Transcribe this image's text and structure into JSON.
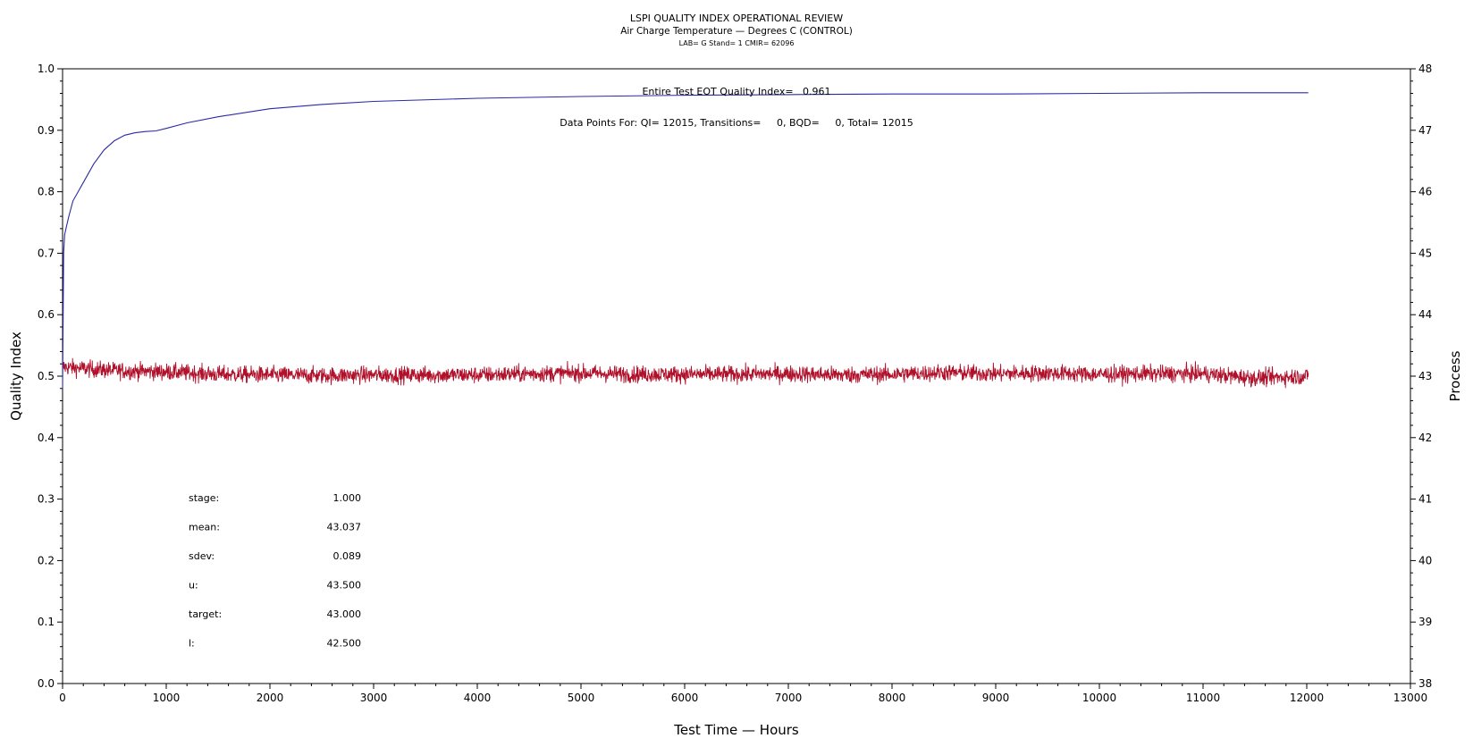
{
  "header": {
    "title": "LSPI QUALITY INDEX OPERATIONAL REVIEW",
    "subtitle": "Air Charge Temperature — Degrees C (CONTROL)",
    "subsubtitle": "LAB= G Stand= 1 CMIR= 62096"
  },
  "annotations": {
    "eot": "Entire Test EOT Quality Index=   0.961",
    "points": "Data Points For: QI= 12015, Transitions=     0, BQD=     0, Total= 12015"
  },
  "stats": [
    {
      "label": "stage:",
      "value": "1.000"
    },
    {
      "label": "mean:",
      "value": "43.037"
    },
    {
      "label": "sdev:",
      "value": "0.089"
    },
    {
      "label": "u:",
      "value": "43.500"
    },
    {
      "label": "target:",
      "value": "43.000"
    },
    {
      "label": "l:",
      "value": "42.500"
    }
  ],
  "colors": {
    "quality_index": "#2a2aa8",
    "process": "#b0102a",
    "axis": "#000000"
  },
  "chart_data": {
    "type": "line",
    "title": "LSPI QUALITY INDEX OPERATIONAL REVIEW",
    "xlabel": "Test Time — Hours",
    "ylabel": "Quality Index",
    "y2label": "Process",
    "xlim": [
      0,
      13000
    ],
    "ylim": [
      0.0,
      1.0
    ],
    "y2lim": [
      38,
      48
    ],
    "xticks": [
      0,
      1000,
      2000,
      3000,
      4000,
      5000,
      6000,
      7000,
      8000,
      9000,
      10000,
      11000,
      12000,
      13000
    ],
    "yticks": [
      "0.0",
      "0.1",
      "0.2",
      "0.3",
      "0.4",
      "0.5",
      "0.6",
      "0.7",
      "0.8",
      "0.9",
      "1.0"
    ],
    "y2ticks": [
      38,
      39,
      40,
      41,
      42,
      43,
      44,
      45,
      46,
      47,
      48
    ],
    "series": [
      {
        "axis": "left",
        "x": [
          0,
          10,
          20,
          40,
          60,
          100,
          150,
          200,
          300,
          400,
          500,
          600,
          700,
          800,
          900,
          1000,
          1200,
          1500,
          2000,
          2500,
          3000,
          4000,
          5000,
          6000,
          7000,
          8000,
          9000,
          10000,
          11000,
          12015
        ],
        "y": [
          0.48,
          0.7,
          0.73,
          0.745,
          0.76,
          0.785,
          0.8,
          0.815,
          0.845,
          0.868,
          0.883,
          0.892,
          0.896,
          0.898,
          0.899,
          0.903,
          0.912,
          0.922,
          0.935,
          0.942,
          0.947,
          0.952,
          0.955,
          0.957,
          0.958,
          0.959,
          0.959,
          0.96,
          0.961,
          0.961
        ]
      },
      {
        "axis": "right",
        "x": [
          0,
          500,
          1000,
          1500,
          2000,
          2500,
          3000,
          3500,
          4000,
          4500,
          5000,
          5500,
          6000,
          6500,
          7000,
          7500,
          8000,
          8500,
          9000,
          9500,
          10000,
          10500,
          11000,
          11500,
          12015
        ],
        "y": [
          43.15,
          43.09,
          43.07,
          43.03,
          43.02,
          43.01,
          43.02,
          43.02,
          43.02,
          43.04,
          43.05,
          43.03,
          43.03,
          43.03,
          43.04,
          43.02,
          43.03,
          43.06,
          43.04,
          43.05,
          43.03,
          43.04,
          43.04,
          42.97,
          43.0
        ],
        "sdev": 0.089
      }
    ]
  }
}
